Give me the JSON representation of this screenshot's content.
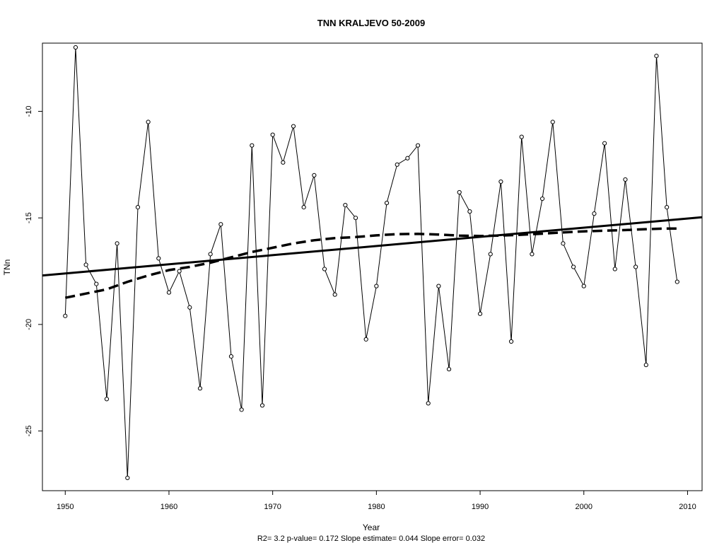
{
  "chart_data": {
    "type": "line",
    "title": "TNN   KRALJEVO 50-2009",
    "xlabel": "Year",
    "ylabel": "TNn",
    "footer": "R2= 3.2  p-value= 0.172  Slope estimate= 0.044  Slope error= 0.032",
    "xlim": [
      1947.8,
      2011.4
    ],
    "ylim": [
      -27.8,
      -6.8
    ],
    "x_ticks": [
      1950,
      1960,
      1970,
      1980,
      1990,
      2000,
      2010
    ],
    "y_ticks": [
      -25,
      -20,
      -15,
      -10
    ],
    "grid": false,
    "legend": "none",
    "series": [
      {
        "style": "line-with-points",
        "x": [
          1950,
          1951,
          1952,
          1953,
          1954,
          1955,
          1956,
          1957,
          1958,
          1959,
          1960,
          1961,
          1962,
          1963,
          1964,
          1965,
          1966,
          1967,
          1968,
          1969,
          1970,
          1971,
          1972,
          1973,
          1974,
          1975,
          1976,
          1977,
          1978,
          1979,
          1980,
          1981,
          1982,
          1983,
          1984,
          1985,
          1986,
          1987,
          1988,
          1989,
          1990,
          1991,
          1992,
          1993,
          1994,
          1995,
          1996,
          1997,
          1998,
          1999,
          2000,
          2001,
          2002,
          2003,
          2004,
          2005,
          2006,
          2007,
          2008,
          2009
        ],
        "values": [
          -19.6,
          -7.0,
          -17.2,
          -18.1,
          -23.5,
          -16.2,
          -27.2,
          -14.5,
          -10.5,
          -16.9,
          -18.5,
          -17.5,
          -19.2,
          -23.0,
          -16.7,
          -15.3,
          -21.5,
          -24.0,
          -11.6,
          -23.8,
          -11.1,
          -12.4,
          -10.7,
          -14.5,
          -13.0,
          -17.4,
          -18.6,
          -14.4,
          -15.0,
          -20.7,
          -18.2,
          -14.3,
          -12.5,
          -12.2,
          -11.6,
          -23.7,
          -18.2,
          -22.1,
          -13.8,
          -14.7,
          -19.5,
          -16.7,
          -13.3,
          -20.8,
          -11.2,
          -16.7,
          -14.1,
          -10.5,
          -16.2,
          -17.3,
          -18.2,
          -14.8,
          -11.5,
          -17.4,
          -13.2,
          -17.3,
          -21.9,
          -7.4,
          -14.5,
          -18.0
        ]
      },
      {
        "style": "solid-trend",
        "x": [
          1947.8,
          2011.4
        ],
        "values": [
          -17.7,
          -14.97
        ]
      },
      {
        "style": "dashed-smooth",
        "x": [
          1950,
          1952,
          1954,
          1956,
          1958,
          1960,
          1962,
          1964,
          1966,
          1968,
          1970,
          1972,
          1974,
          1976,
          1978,
          1980,
          1982,
          1984,
          1986,
          1988,
          1990,
          1992,
          1994,
          1996,
          1998,
          2000,
          2002,
          2004,
          2006,
          2008,
          2009
        ],
        "values": [
          -18.75,
          -18.55,
          -18.35,
          -18.0,
          -17.7,
          -17.45,
          -17.3,
          -17.1,
          -16.85,
          -16.6,
          -16.4,
          -16.2,
          -16.05,
          -15.95,
          -15.9,
          -15.82,
          -15.76,
          -15.75,
          -15.78,
          -15.83,
          -15.85,
          -15.83,
          -15.79,
          -15.74,
          -15.68,
          -15.63,
          -15.6,
          -15.57,
          -15.53,
          -15.5,
          -15.5
        ]
      }
    ]
  }
}
